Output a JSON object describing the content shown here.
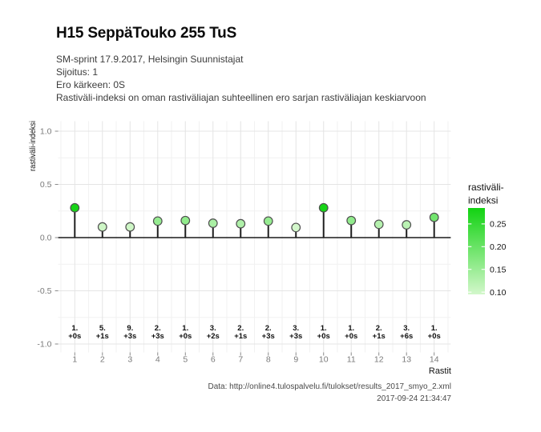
{
  "header": {
    "title": "H15 SeppäTouko 255 TuS",
    "subtitle_lines": [
      "SM-sprint 17.9.2017, Helsingin Suunnistajat",
      "Sijoitus: 1",
      "Ero kärkeen: 0S",
      "Rastiväli-indeksi on oman rastiväliajan suhteellinen ero sarjan rastiväliajan keskiarvoon"
    ]
  },
  "chart_data": {
    "type": "lollipop",
    "title": "H15 SeppäTouko 255 TuS",
    "xlabel": "Rastit",
    "ylabel": "rastiväli-indeksi",
    "x": [
      1,
      2,
      3,
      4,
      5,
      6,
      7,
      8,
      9,
      10,
      11,
      12,
      13,
      14
    ],
    "values": [
      0.28,
      0.1,
      0.1,
      0.155,
      0.16,
      0.135,
      0.13,
      0.155,
      0.095,
      0.28,
      0.16,
      0.125,
      0.12,
      0.19
    ],
    "annotations": [
      {
        "place": "1.",
        "gap": "+0s"
      },
      {
        "place": "5.",
        "gap": "+1s"
      },
      {
        "place": "9.",
        "gap": "+3s"
      },
      {
        "place": "2.",
        "gap": "+3s"
      },
      {
        "place": "1.",
        "gap": "+0s"
      },
      {
        "place": "3.",
        "gap": "+2s"
      },
      {
        "place": "2.",
        "gap": "+1s"
      },
      {
        "place": "2.",
        "gap": "+3s"
      },
      {
        "place": "3.",
        "gap": "+3s"
      },
      {
        "place": "1.",
        "gap": "+0s"
      },
      {
        "place": "1.",
        "gap": "+0s"
      },
      {
        "place": "2.",
        "gap": "+1s"
      },
      {
        "place": "3.",
        "gap": "+6s"
      },
      {
        "place": "1.",
        "gap": "+0s"
      }
    ],
    "ylim": [
      -1,
      1
    ],
    "yticks": [
      {
        "value": 1.0,
        "label": "1.0"
      },
      {
        "value": 0.5,
        "label": "0.5"
      },
      {
        "value": 0.0,
        "label": "0.0"
      },
      {
        "value": -0.5,
        "label": "-0.5"
      },
      {
        "value": -1.0,
        "label": "-1.0"
      }
    ],
    "yticks_minor": [
      0.75,
      0.25,
      -0.25,
      -0.75
    ],
    "baseline": 0,
    "grid": "major+minor, light gray on white",
    "legend": {
      "position": "right",
      "title_lines": [
        "rastiväli-",
        "indeksi"
      ],
      "tick_labels": [
        "0.25",
        "0.20",
        "0.15",
        "0.10"
      ],
      "tick_values": [
        0.25,
        0.2,
        0.15,
        0.1
      ],
      "domain": [
        0.095,
        0.285
      ],
      "color_low": "#d3f7cb",
      "color_high": "#12d312"
    }
  },
  "footer": {
    "line1": "Data: http://online4.tulospalvelu.fi/tulokset/results_2017_smyo_2.xml",
    "line2": "2017-09-24 21:34:47"
  }
}
